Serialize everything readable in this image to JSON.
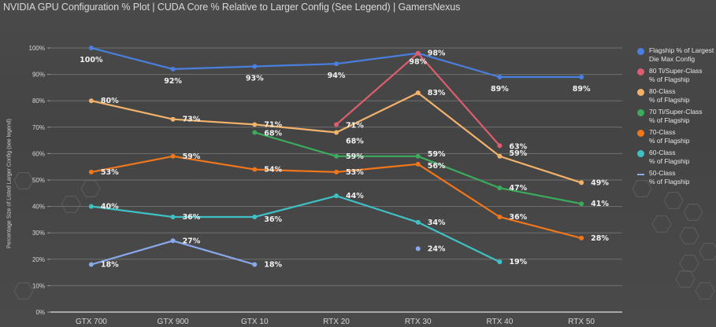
{
  "chart_data": {
    "type": "line",
    "title": "NVIDIA GPU Configuration % Plot | CUDA Core % Relative to Larger Config (See Legend) | GamersNexus",
    "xlabel": "",
    "ylabel": "Percentage Size of Listed Larger Config (see legend)",
    "ylim": [
      0,
      100
    ],
    "yticks": [
      "0%",
      "10%",
      "20%",
      "30%",
      "40%",
      "50%",
      "60%",
      "70%",
      "80%",
      "90%",
      "100%"
    ],
    "grid": true,
    "legend_position": "right",
    "categories": [
      "GTX 700",
      "GTX 900",
      "GTX 10",
      "RTX 20",
      "RTX 30",
      "RTX 40",
      "RTX 50"
    ],
    "series": [
      {
        "name": "Flagship % of Largest Die Max Config",
        "color": "#4a7fe0",
        "values": [
          100,
          92,
          93,
          94,
          98,
          89,
          89
        ],
        "labels": [
          "100%",
          "92%",
          "93%",
          "94%",
          "98%",
          "89%",
          "89%"
        ]
      },
      {
        "name": "80 Ti/Super-Class % of Flagship",
        "color": "#dd5f6d",
        "values": [
          null,
          null,
          null,
          71,
          98,
          63,
          null
        ],
        "labels": [
          null,
          null,
          null,
          "71%",
          "98%",
          "63%",
          null
        ]
      },
      {
        "name": "80-Class % of Flagship",
        "color": "#f2b26a",
        "values": [
          80,
          73,
          71,
          68,
          83,
          59,
          49
        ],
        "labels": [
          "80%",
          "73%",
          "71%",
          "68%",
          "83%",
          "59%",
          "49%"
        ]
      },
      {
        "name": "70 Ti/Super-Class % of Flagship",
        "color": "#3bab5c",
        "values": [
          null,
          null,
          68,
          59,
          59,
          47,
          41
        ],
        "labels": [
          null,
          null,
          "68%",
          "59%",
          "59%",
          "47%",
          "41%"
        ]
      },
      {
        "name": "70-Class % of Flagship",
        "color": "#f0761c",
        "values": [
          53,
          59,
          54,
          53,
          56,
          36,
          28
        ],
        "labels": [
          "53%",
          "59%",
          "54%",
          "53%",
          "56%",
          "36%",
          "28%"
        ]
      },
      {
        "name": "60-Class % of Flagship",
        "color": "#3fc0c5",
        "values": [
          40,
          36,
          36,
          44,
          34,
          19,
          null
        ],
        "labels": [
          "40%",
          "36%",
          "36%",
          "44%",
          "34%",
          "19%",
          null
        ]
      },
      {
        "name": "50-Class % of Flagship",
        "color": "#8aa8ee",
        "values": [
          18,
          27,
          18,
          null,
          24,
          null,
          null
        ],
        "labels": [
          "18%",
          "27%",
          "18%",
          null,
          "24%",
          null,
          null
        ]
      }
    ]
  },
  "legend": [
    {
      "text": "Flagship % of Largest\nDie Max Config",
      "marker": "dot"
    },
    {
      "text": "80 Ti/Super-Class\n% of Flagship",
      "marker": "dot"
    },
    {
      "text": "80-Class\n% of Flagship",
      "marker": "dot"
    },
    {
      "text": "70 Ti/Super-Class\n% of Flagship",
      "marker": "dot"
    },
    {
      "text": "70-Class\n% of Flagship",
      "marker": "dot"
    },
    {
      "text": "60-Class\n% of Flagship",
      "marker": "dot"
    },
    {
      "text": "50-Class\n% of Flagship",
      "marker": "line"
    }
  ]
}
